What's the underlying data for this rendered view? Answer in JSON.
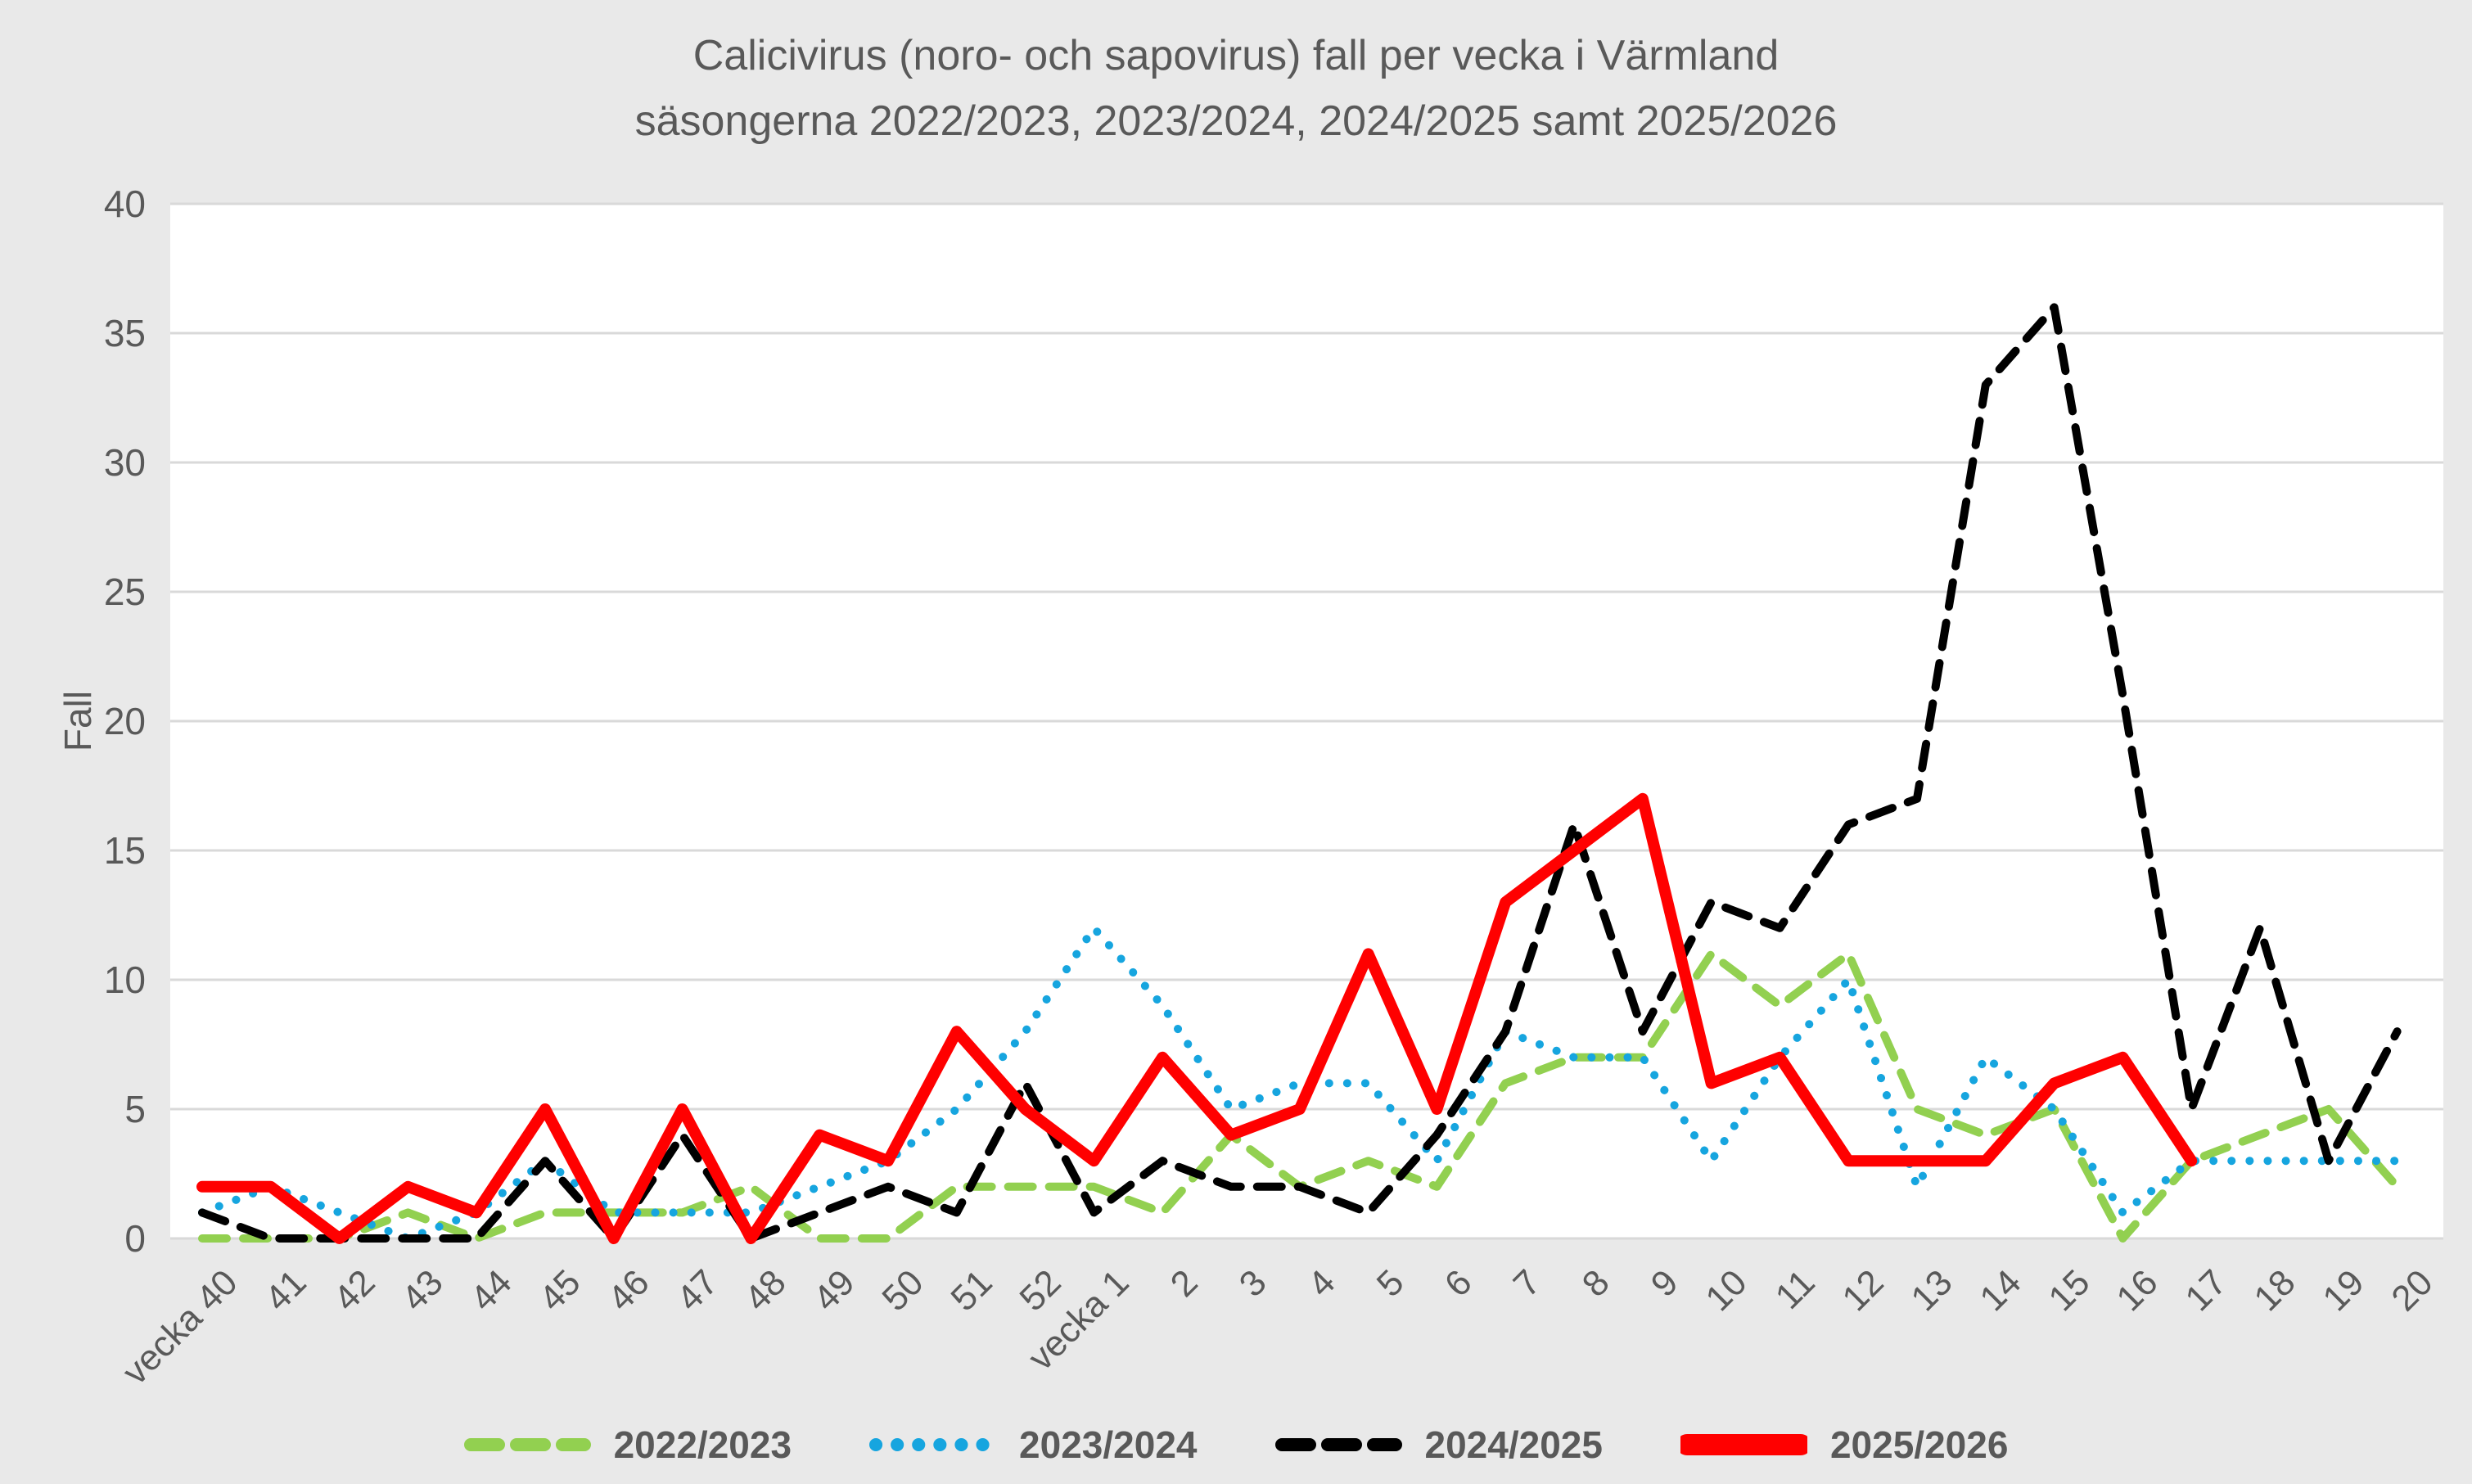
{
  "title": {
    "line1": "Calicivirus (noro- och sapovirus) fall per vecka i Värmland",
    "line2": "säsongerna 2022/2023, 2023/2024, 2024/2025 samt 2025/2026"
  },
  "y_axis": {
    "label": "Fall",
    "ticks": [
      0,
      5,
      10,
      15,
      20,
      25,
      30,
      35,
      40
    ]
  },
  "colors": {
    "background": "#e9e9e9",
    "plot_background": "#ffffff",
    "gridline": "#d9d9d9",
    "text": "#595959",
    "season_2022": "#92d050",
    "season_2023": "#16a5df",
    "season_2024": "#000000",
    "season_2025": "#ff0000"
  },
  "chart_data": {
    "type": "line",
    "title": "Calicivirus (noro- och sapovirus) fall per vecka i Värmland säsongerna 2022/2023, 2023/2024, 2024/2025 samt 2025/2026",
    "xlabel": "",
    "ylabel": "Fall",
    "ylim": [
      0,
      40
    ],
    "grid": true,
    "legend_position": "bottom",
    "categories": [
      "vecka 40",
      "41",
      "42",
      "43",
      "44",
      "45",
      "46",
      "47",
      "48",
      "49",
      "50",
      "51",
      "52",
      "vecka 1",
      "2",
      "3",
      "4",
      "5",
      "6",
      "7",
      "8",
      "9",
      "10",
      "11",
      "12",
      "13",
      "14",
      "15",
      "16",
      "17",
      "18",
      "19",
      "20"
    ],
    "series": [
      {
        "name": "2022/2023",
        "color": "#92d050",
        "dash": "dashed",
        "width": 10,
        "values": [
          0,
          0,
          0,
          1,
          0,
          1,
          1,
          1,
          2,
          0,
          0,
          2,
          2,
          2,
          1,
          4,
          2,
          3,
          2,
          6,
          7,
          7,
          11,
          9,
          11,
          5,
          4,
          5,
          0,
          3,
          4,
          5,
          2
        ]
      },
      {
        "name": "2023/2024",
        "color": "#16a5df",
        "dash": "dotted",
        "width": 10,
        "values": [
          1,
          2,
          1,
          0,
          1,
          3,
          1,
          1,
          1,
          2,
          3,
          5,
          8,
          12,
          9,
          5,
          6,
          6,
          3,
          8,
          7,
          7,
          3,
          7,
          10,
          2,
          7,
          5,
          1,
          3,
          3,
          3,
          3
        ]
      },
      {
        "name": "2024/2025",
        "color": "#000000",
        "dash": "dashed",
        "width": 10,
        "values": [
          1,
          0,
          0,
          0,
          0,
          3,
          0,
          4,
          0,
          1,
          2,
          1,
          6,
          1,
          3,
          2,
          2,
          1,
          4,
          8,
          16,
          8,
          13,
          12,
          16,
          17,
          33,
          36,
          21,
          5,
          12,
          3,
          8
        ]
      },
      {
        "name": "2025/2026",
        "color": "#ff0000",
        "dash": "solid",
        "width": 14,
        "values": [
          2,
          2,
          0,
          2,
          1,
          5,
          0,
          5,
          0,
          4,
          3,
          8,
          5,
          3,
          7,
          4,
          5,
          11,
          5,
          13,
          15,
          17,
          6,
          7,
          3,
          3,
          3,
          6,
          7,
          3,
          null,
          null,
          null
        ]
      }
    ]
  }
}
